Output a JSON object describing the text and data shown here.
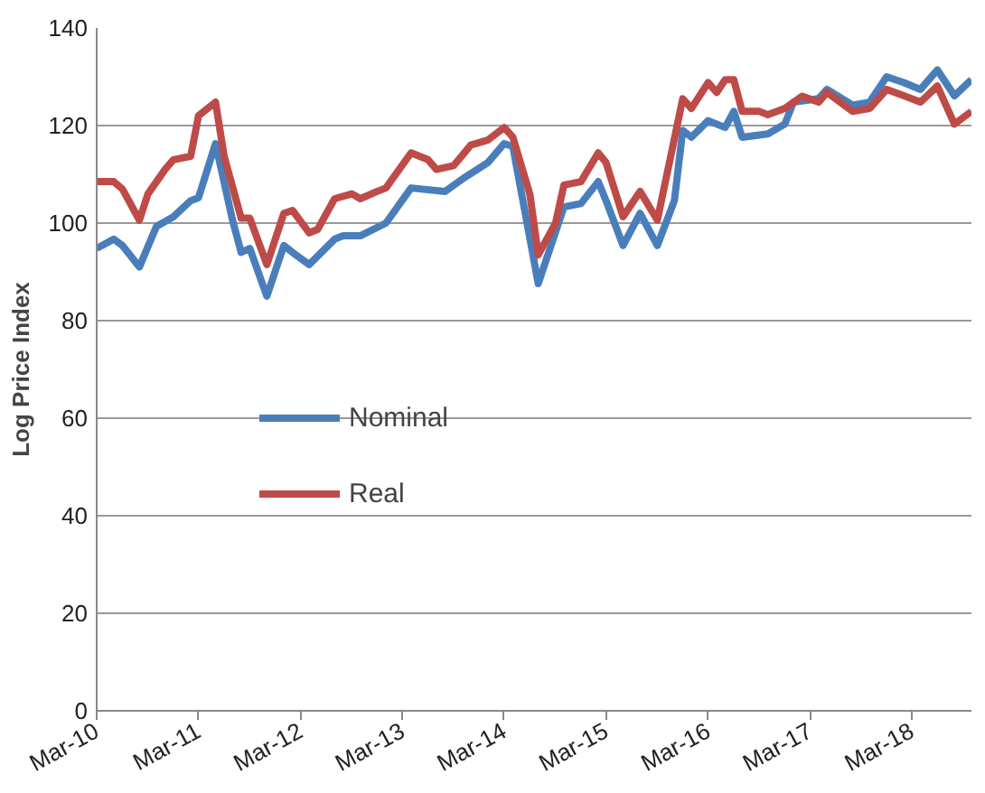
{
  "chart_data": {
    "type": "line",
    "ylabel": "Log Price Index",
    "xlim": [
      "2010-03",
      "2018-10"
    ],
    "xticks": [
      {
        "value": "2010-03",
        "label": "Mar-10"
      },
      {
        "value": "2011-03",
        "label": "Mar-11"
      },
      {
        "value": "2012-03",
        "label": "Mar-12"
      },
      {
        "value": "2013-03",
        "label": "Mar-13"
      },
      {
        "value": "2014-03",
        "label": "Mar-14"
      },
      {
        "value": "2015-03",
        "label": "Mar-15"
      },
      {
        "value": "2016-03",
        "label": "Mar-16"
      },
      {
        "value": "2017-03",
        "label": "Mar-17"
      },
      {
        "value": "2018-03",
        "label": "Mar-18"
      }
    ],
    "ylim": [
      0,
      140
    ],
    "yticks": [
      0,
      20,
      40,
      60,
      80,
      100,
      120,
      140
    ],
    "grid": "y",
    "legend": "center",
    "marker": "none",
    "line_style": "solid",
    "series": [
      {
        "name": "Nominal",
        "color": "#4a7ebb",
        "x": [
          "2010-03",
          "2010-05",
          "2010-06",
          "2010-08",
          "2010-10",
          "2010-12",
          "2011-02",
          "2011-03",
          "2011-05",
          "2011-07",
          "2011-08",
          "2011-09",
          "2011-11",
          "2012-01",
          "2012-02",
          "2012-04",
          "2012-07",
          "2012-08",
          "2012-10",
          "2013-01",
          "2013-04",
          "2013-08",
          "2013-10",
          "2014-01",
          "2014-03",
          "2014-04",
          "2014-07",
          "2014-10",
          "2014-12",
          "2015-02",
          "2015-03",
          "2015-05",
          "2015-07",
          "2015-09",
          "2015-11",
          "2015-12",
          "2016-01",
          "2016-03",
          "2016-05",
          "2016-06",
          "2016-07",
          "2016-10",
          "2016-12",
          "2017-01",
          "2017-04",
          "2017-05",
          "2017-08",
          "2017-10",
          "2017-12",
          "2018-02",
          "2018-04",
          "2018-06",
          "2018-08",
          "2018-10"
        ],
        "values": [
          94.8,
          96.7,
          95.4,
          91,
          99.3,
          101.3,
          104.6,
          105.2,
          116.3,
          100.6,
          94,
          94.8,
          85,
          95.4,
          94,
          91.5,
          96.7,
          97.4,
          97.4,
          100,
          107.2,
          106.5,
          109,
          112.4,
          116.3,
          115.7,
          87.6,
          103.3,
          104,
          108.5,
          104.6,
          95.4,
          102,
          95.4,
          104.6,
          119,
          117.6,
          121,
          119.6,
          122.9,
          117.6,
          118.3,
          120.3,
          124.8,
          125.5,
          127.4,
          124.2,
          124.8,
          130,
          128.8,
          127.4,
          131.4,
          126.1,
          129.4
        ]
      },
      {
        "name": "Real",
        "color": "#be4b48",
        "x": [
          "2010-03",
          "2010-05",
          "2010-06",
          "2010-08",
          "2010-09",
          "2010-11",
          "2010-12",
          "2011-02",
          "2011-03",
          "2011-05",
          "2011-06",
          "2011-08",
          "2011-09",
          "2011-11",
          "2012-01",
          "2012-02",
          "2012-04",
          "2012-05",
          "2012-07",
          "2012-09",
          "2012-10",
          "2012-12",
          "2013-01",
          "2013-04",
          "2013-06",
          "2013-07",
          "2013-09",
          "2013-11",
          "2014-01",
          "2014-03",
          "2014-04",
          "2014-06",
          "2014-07",
          "2014-09",
          "2014-10",
          "2014-12",
          "2015-02",
          "2015-03",
          "2015-05",
          "2015-07",
          "2015-09",
          "2015-12",
          "2016-01",
          "2016-03",
          "2016-04",
          "2016-05",
          "2016-06",
          "2016-07",
          "2016-09",
          "2016-10",
          "2016-12",
          "2017-02",
          "2017-04",
          "2017-05",
          "2017-08",
          "2017-10",
          "2017-12",
          "2018-02",
          "2018-04",
          "2018-06",
          "2018-08",
          "2018-10"
        ],
        "values": [
          108.5,
          108.5,
          107,
          100.6,
          106,
          111,
          113,
          113.7,
          122,
          124.8,
          113.7,
          101,
          101,
          91.5,
          102,
          102.6,
          98,
          98.7,
          105,
          106,
          105,
          106.5,
          107.2,
          114.4,
          113,
          111,
          111.8,
          116,
          117,
          119.6,
          117.6,
          105.9,
          93.5,
          100,
          107.8,
          108.5,
          114.4,
          112.4,
          101.3,
          106.5,
          100.6,
          125.5,
          123.5,
          128.8,
          126.8,
          129.4,
          129.4,
          122.9,
          122.9,
          122.2,
          123.5,
          126,
          124.8,
          126.8,
          122.9,
          123.5,
          127.4,
          126.1,
          124.8,
          128.1,
          120.3,
          122.9
        ]
      }
    ]
  }
}
